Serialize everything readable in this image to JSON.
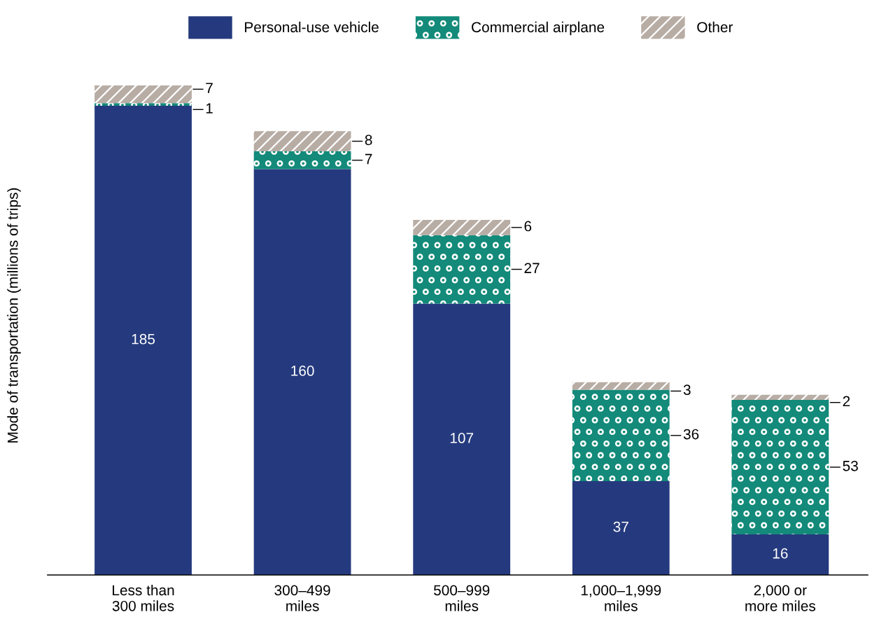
{
  "chart_data": {
    "type": "bar",
    "stacked": true,
    "ylabel": "Mode of transportation (millions of trips)",
    "categories": [
      "Less than\n300 miles",
      "300–499\nmiles",
      "500–999\nmiles",
      "1,000–1,999\nmiles",
      "2,000 or\nmore miles"
    ],
    "series": [
      {
        "name": "Personal-use vehicle",
        "color": "#253a7e",
        "values": [
          185,
          160,
          107,
          37,
          16
        ]
      },
      {
        "name": "Commercial airplane",
        "color": "#138a7a",
        "values": [
          1,
          7,
          27,
          36,
          53
        ]
      },
      {
        "name": "Other",
        "color": "#b8ada5",
        "values": [
          7,
          8,
          6,
          3,
          2
        ]
      }
    ],
    "data_labels": true,
    "legend": "top",
    "grid": false,
    "tick_labels": "x"
  }
}
